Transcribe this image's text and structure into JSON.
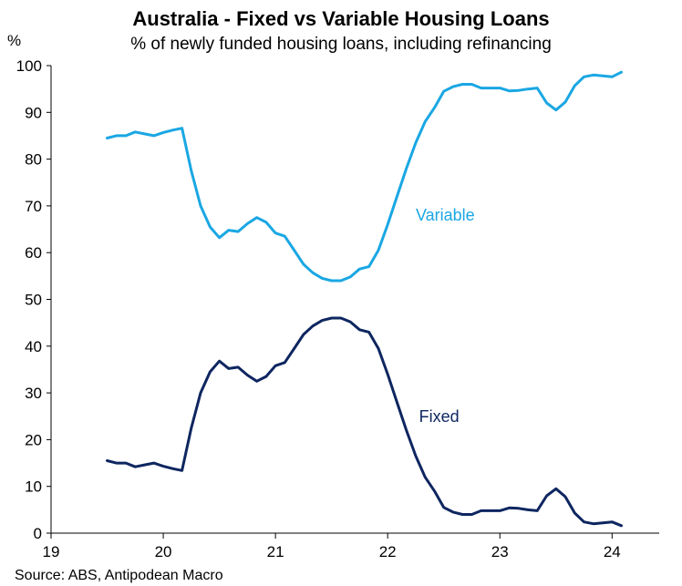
{
  "title": "Australia - Fixed vs Variable Housing Loans",
  "subtitle": "% of newly funded housing loans, including refinancing",
  "source": "Source: ABS, Antipodean Macro",
  "chart_data": {
    "type": "line",
    "ylabel": "%",
    "xlabel": "",
    "ylim": [
      0,
      100
    ],
    "yticks": [
      0,
      10,
      20,
      30,
      40,
      50,
      60,
      70,
      80,
      90,
      100
    ],
    "xlim": [
      19,
      24.42
    ],
    "xticks": [
      19,
      20,
      21,
      22,
      23,
      24
    ],
    "xtick_labels": [
      "19",
      "20",
      "21",
      "22",
      "23",
      "24"
    ],
    "grid": false,
    "series": [
      {
        "name": "Variable",
        "color": "#1aa7e3",
        "label_at": [
          22.25,
          68
        ],
        "x": [
          19.5,
          19.583,
          19.667,
          19.75,
          19.833,
          19.917,
          20.0,
          20.083,
          20.167,
          20.25,
          20.333,
          20.417,
          20.5,
          20.583,
          20.667,
          20.75,
          20.833,
          20.917,
          21.0,
          21.083,
          21.167,
          21.25,
          21.333,
          21.417,
          21.5,
          21.583,
          21.667,
          21.75,
          21.833,
          21.917,
          22.0,
          22.083,
          22.167,
          22.25,
          22.333,
          22.417,
          22.5,
          22.583,
          22.667,
          22.75,
          22.833,
          22.917,
          23.0,
          23.083,
          23.167,
          23.25,
          23.333,
          23.417,
          23.5,
          23.583,
          23.667,
          23.75,
          23.833,
          23.917,
          24.0,
          24.083
        ],
        "y": [
          84.5,
          85.0,
          85.0,
          85.8,
          85.4,
          85.0,
          85.7,
          86.2,
          86.6,
          77.5,
          70.0,
          65.5,
          63.2,
          64.8,
          64.5,
          66.2,
          67.5,
          66.5,
          64.2,
          63.5,
          60.5,
          57.5,
          55.7,
          54.5,
          54.0,
          54.0,
          54.8,
          56.5,
          57.0,
          60.5,
          66.0,
          72.0,
          78.0,
          83.5,
          88.0,
          91.0,
          94.5,
          95.5,
          96.0,
          96.0,
          95.2,
          95.2,
          95.2,
          94.6,
          94.7,
          95.0,
          95.2,
          92.0,
          90.5,
          92.2,
          95.7,
          97.6,
          98.0,
          97.8,
          97.6,
          98.6
        ]
      },
      {
        "name": "Fixed",
        "color": "#0e2660",
        "label_at": [
          22.28,
          25
        ],
        "x": [
          19.5,
          19.583,
          19.667,
          19.75,
          19.833,
          19.917,
          20.0,
          20.083,
          20.167,
          20.25,
          20.333,
          20.417,
          20.5,
          20.583,
          20.667,
          20.75,
          20.833,
          20.917,
          21.0,
          21.083,
          21.167,
          21.25,
          21.333,
          21.417,
          21.5,
          21.583,
          21.667,
          21.75,
          21.833,
          21.917,
          22.0,
          22.083,
          22.167,
          22.25,
          22.333,
          22.417,
          22.5,
          22.583,
          22.667,
          22.75,
          22.833,
          22.917,
          23.0,
          23.083,
          23.167,
          23.25,
          23.333,
          23.417,
          23.5,
          23.583,
          23.667,
          23.75,
          23.833,
          23.917,
          24.0,
          24.083
        ],
        "y": [
          15.5,
          15.0,
          15.0,
          14.2,
          14.6,
          15.0,
          14.3,
          13.8,
          13.4,
          22.5,
          30.0,
          34.5,
          36.8,
          35.2,
          35.5,
          33.8,
          32.5,
          33.5,
          35.8,
          36.5,
          39.5,
          42.5,
          44.3,
          45.5,
          46.0,
          46.0,
          45.2,
          43.5,
          43.0,
          39.5,
          34.0,
          28.0,
          22.0,
          16.5,
          12.0,
          9.0,
          5.5,
          4.5,
          4.0,
          4.0,
          4.8,
          4.8,
          4.8,
          5.4,
          5.3,
          5.0,
          4.8,
          8.0,
          9.5,
          7.8,
          4.3,
          2.4,
          2.0,
          2.2,
          2.4,
          1.6
        ]
      }
    ]
  }
}
